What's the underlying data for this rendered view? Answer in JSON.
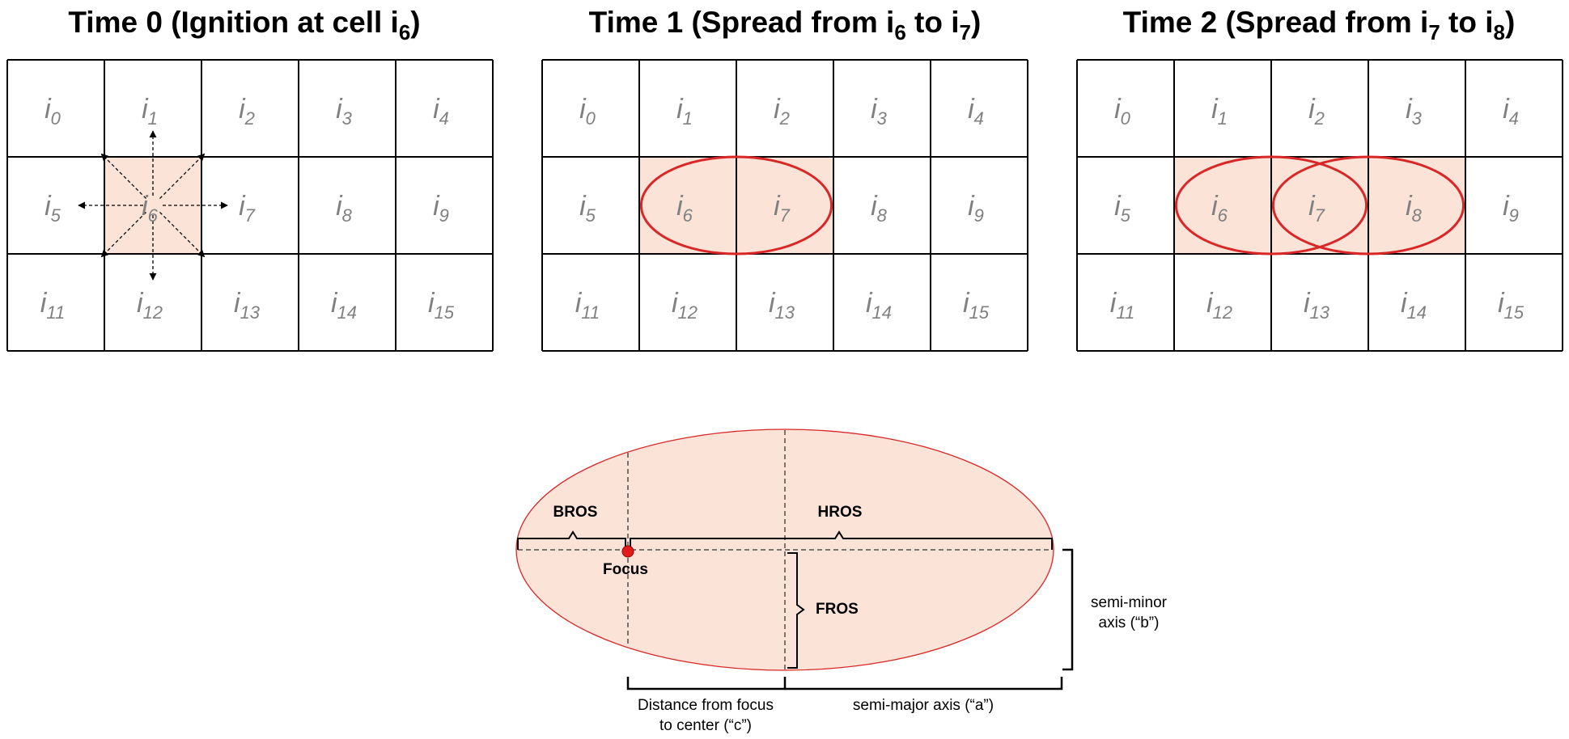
{
  "panels": [
    {
      "title_main": "Time 0 (Ignition at cell i",
      "title_sub1": "6",
      "title_mid": ")",
      "title_sub2": "",
      "title_end": "",
      "burning": [
        6
      ],
      "ellipses": [],
      "ignition_arrows": true
    },
    {
      "title_main": "Time 1 (Spread from i",
      "title_sub1": "6",
      "title_mid": " to i",
      "title_sub2": "7",
      "title_end": ")",
      "burning": [
        6,
        7
      ],
      "ellipses": [
        [
          6,
          7
        ]
      ],
      "ignition_arrows": false
    },
    {
      "title_main": "Time 2 (Spread from i",
      "title_sub1": "7",
      "title_mid": " to i",
      "title_sub2": "8",
      "title_end": ")",
      "burning": [
        6,
        7,
        8
      ],
      "ellipses": [
        [
          6,
          7
        ],
        [
          7,
          8
        ]
      ],
      "ignition_arrows": false
    }
  ],
  "cells": [
    {
      "base": "i",
      "sub": "0"
    },
    {
      "base": "i",
      "sub": "1"
    },
    {
      "base": "i",
      "sub": "2"
    },
    {
      "base": "i",
      "sub": "3"
    },
    {
      "base": "i",
      "sub": "4"
    },
    {
      "base": "i",
      "sub": "5"
    },
    {
      "base": "i",
      "sub": "6"
    },
    {
      "base": "i",
      "sub": "7"
    },
    {
      "base": "i",
      "sub": "8"
    },
    {
      "base": "i",
      "sub": "9"
    },
    {
      "base": "i",
      "sub": "11"
    },
    {
      "base": "i",
      "sub": "12"
    },
    {
      "base": "i",
      "sub": "13"
    },
    {
      "base": "i",
      "sub": "14"
    },
    {
      "base": "i",
      "sub": "15"
    }
  ],
  "ellipse_diagram": {
    "bros": "BROS",
    "hros": "HROS",
    "focus": "Focus",
    "fros": "FROS",
    "semi_minor_line1": "semi-minor",
    "semi_minor_line2": "axis (“b”)",
    "dist_line1": "Distance from focus",
    "dist_line2": "to center (“c”)",
    "semi_major": "semi-major axis (“a”)"
  },
  "colors": {
    "burning_fill": "#fbe3d8",
    "ellipse_stroke": "#d92626",
    "grid_stroke": "#000000",
    "label_gray": "#808080",
    "focus_fill": "#e31b1b"
  }
}
